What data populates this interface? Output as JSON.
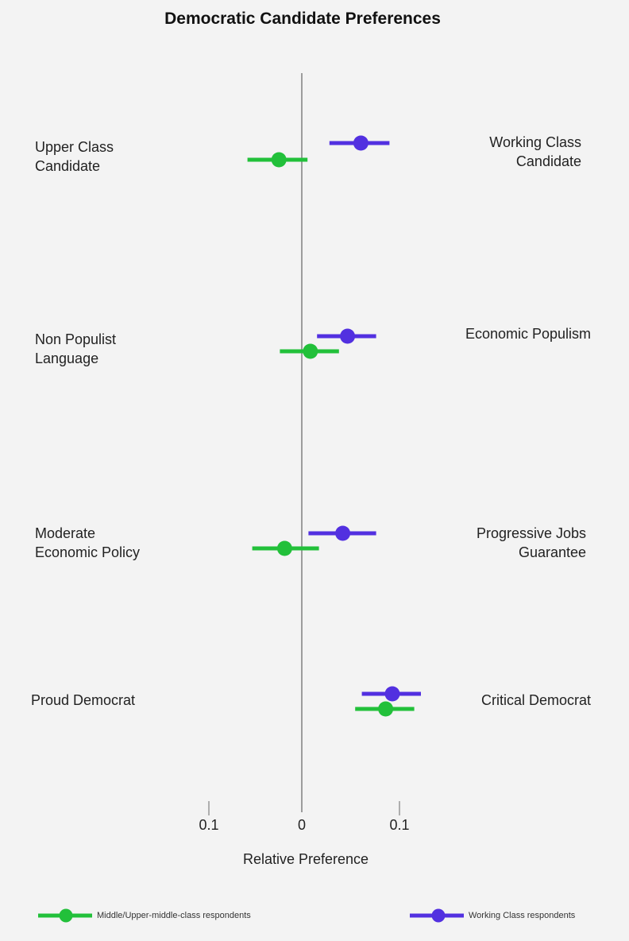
{
  "chart_data": {
    "type": "scatter",
    "subtype": "dot-with-error-bars",
    "title": "Democratic Candidate Preferences",
    "xlabel": "Relative Preference",
    "ylabel": "",
    "xlim": [
      -0.13,
      0.17
    ],
    "x_ticks": [
      {
        "value": -0.1,
        "label": "0.1"
      },
      {
        "value": 0,
        "label": "0"
      },
      {
        "value": 0.1,
        "label": "0.1"
      }
    ],
    "grid": false,
    "zero_line": true,
    "legend_position": "bottom",
    "categories": [
      {
        "left_label": "Upper Class\nCandidate",
        "right_label": "Working Class\nCandidate"
      },
      {
        "left_label": "Non Populist\nLanguage",
        "right_label": "Economic Populism"
      },
      {
        "left_label": "Moderate\nEconomic Policy",
        "right_label": "Progressive Jobs\nGuarantee"
      },
      {
        "left_label": "Proud Democrat",
        "right_label": "Critical Democrat"
      }
    ],
    "series": [
      {
        "name": "Middle/Upper-middle-class respondents",
        "color": "#22c03a",
        "values": [
          -0.024,
          0.009,
          -0.018,
          0.088
        ],
        "ci_low": [
          -0.057,
          -0.023,
          -0.052,
          0.056
        ],
        "ci_high": [
          0.006,
          0.039,
          0.018,
          0.118
        ]
      },
      {
        "name": "Working Class respondents",
        "color": "#5230e0",
        "values": [
          0.062,
          0.048,
          0.043,
          0.095
        ],
        "ci_low": [
          0.029,
          0.016,
          0.007,
          0.063
        ],
        "ci_high": [
          0.092,
          0.078,
          0.078,
          0.125
        ]
      }
    ]
  },
  "title": "Democratic Candidate Preferences",
  "labels": {
    "row1_left_1": "Upper Class",
    "row1_left_2": "Candidate",
    "row1_right_1": "Working Class",
    "row1_right_2": "Candidate",
    "row2_left_1": "Non Populist",
    "row2_left_2": "Language",
    "row2_right_1": "Economic Populism",
    "row3_left_1": "Moderate",
    "row3_left_2": "Economic Policy",
    "row3_right_1": "Progressive Jobs",
    "row3_right_2": "Guarantee",
    "row4_left_1": "Proud Democrat",
    "row4_right_1": "Critical Democrat"
  },
  "axis": {
    "tick_neg": "0.1",
    "tick_zero": "0",
    "tick_pos": "0.1",
    "title": "Relative Preference"
  },
  "legend": {
    "green_label": "Middle/Upper-middle-class respondents",
    "purple_label": "Working Class respondents"
  },
  "colors": {
    "green": "#22c03a",
    "purple": "#5230e0",
    "axis": "#808080",
    "background": "#f3f3f3"
  }
}
